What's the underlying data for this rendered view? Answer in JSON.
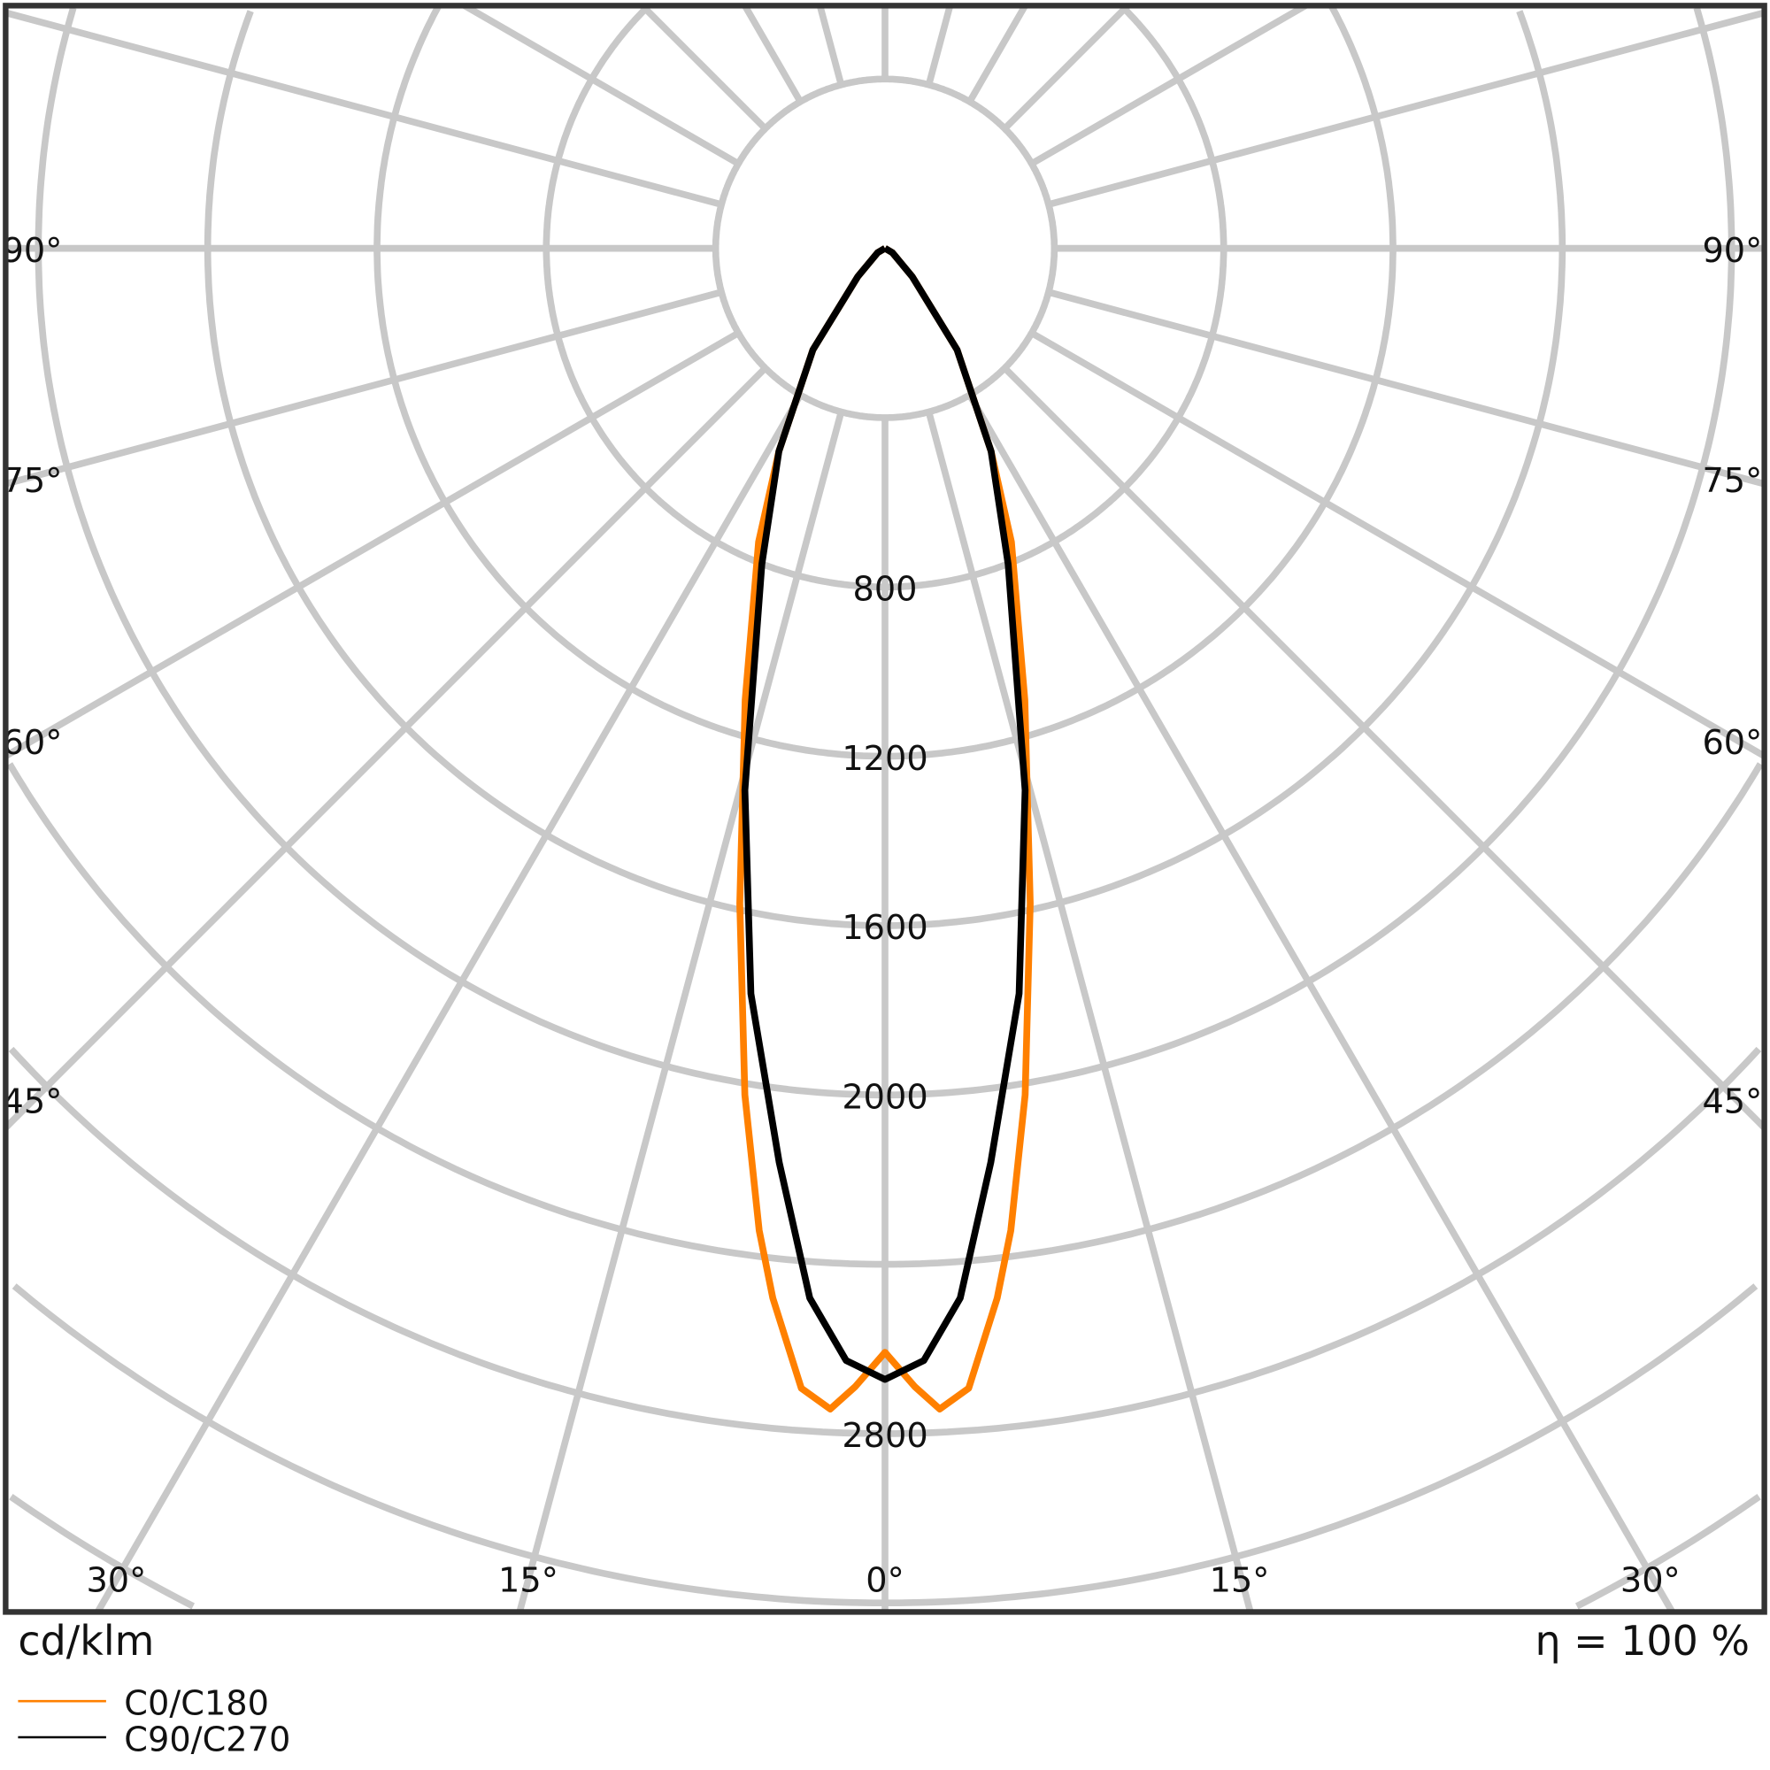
{
  "chart_data": {
    "type": "polar-line",
    "unit_label": "cd/klm",
    "efficiency_label": "η = 100 %",
    "radial_ticks": [
      400,
      800,
      1200,
      1600,
      2000,
      2400,
      2800,
      3200,
      3600,
      4000,
      4400,
      4800
    ],
    "radial_tick_labels": [
      "800",
      "1200",
      "1600",
      "2000",
      "2800"
    ],
    "radial_tick_label_values": [
      800,
      1200,
      1600,
      2000,
      2800
    ],
    "angle_labels": {
      "left": [
        "90°",
        "75°",
        "60°",
        "45°"
      ],
      "right": [
        "90°",
        "75°",
        "60°",
        "45°"
      ],
      "bottom": [
        "30°",
        "15°",
        "0°",
        "15°",
        "30°"
      ]
    },
    "grid": true,
    "legend_position": "bottom-left",
    "series": [
      {
        "name": "C0/C180",
        "color": "#ff8000",
        "gamma": [
          0,
          1.5,
          2.7,
          4.2,
          6.1,
          7.3,
          9.4,
          12.5,
          17.2,
          23.3,
          27.6,
          35.4,
          44,
          60,
          90
        ],
        "intensity": [
          2608,
          2690,
          2745,
          2700,
          2494,
          2339,
          2027,
          1585,
          1117,
          755,
          541,
          294,
          92,
          20,
          0
        ]
      },
      {
        "name": "C90/C270",
        "color": "#000000",
        "gamma": [
          0,
          2.0,
          4.1,
          6.6,
          10.2,
          14.5,
          21.3,
          27.6,
          35.4,
          44,
          60,
          90
        ],
        "intensity": [
          2672,
          2629,
          2486,
          2174,
          1789,
          1322,
          801,
          541,
          294,
          92,
          20,
          0
        ]
      }
    ]
  }
}
